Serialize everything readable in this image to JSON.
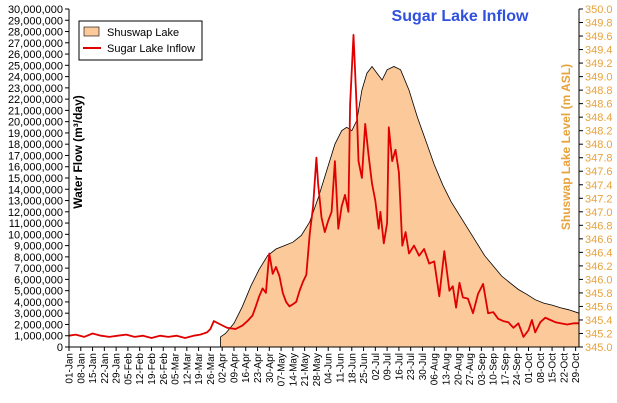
{
  "chart_data": {
    "type": "area+line (dual axis)",
    "title": "Sugar Lake Inflow",
    "ylabel_left": "Water Flow (m³/day)",
    "ylabel_right": "Shuswap Lake Level (m ASL)",
    "ylim_left": [
      0,
      30000000
    ],
    "ylim_right": [
      345.0,
      350.0
    ],
    "grid": false,
    "legend_position": "top-left inside",
    "legend": [
      "Shuswap Lake",
      "Sugar Lake Inflow"
    ],
    "y_ticks_left": [
      "0",
      "1,000,000",
      "2,000,000",
      "3,000,000",
      "4,000,000",
      "5,000,000",
      "6,000,000",
      "7,000,000",
      "8,000,000",
      "9,000,000",
      "10,000,000",
      "11,000,000",
      "12,000,000",
      "13,000,000",
      "14,000,000",
      "15,000,000",
      "16,000,000",
      "17,000,000",
      "18,000,000",
      "19,000,000",
      "20,000,000",
      "21,000,000",
      "22,000,000",
      "23,000,000",
      "24,000,000",
      "25,000,000",
      "26,000,000",
      "27,000,000",
      "28,000,000",
      "29,000,000",
      "30,000,000"
    ],
    "y_ticks_right": [
      "345.0",
      "345.2",
      "345.4",
      "345.6",
      "345.8",
      "346.0",
      "346.2",
      "346.4",
      "346.6",
      "346.8",
      "347.0",
      "347.2",
      "347.4",
      "347.6",
      "347.8",
      "348.0",
      "348.2",
      "348.4",
      "348.6",
      "348.8",
      "349.0",
      "349.2",
      "349.4",
      "349.6",
      "349.8",
      "350.0"
    ],
    "x_ticks": [
      "01-Jan",
      "08-Jan",
      "15-Jan",
      "22-Jan",
      "29-Jan",
      "05-Feb",
      "12-Feb",
      "19-Feb",
      "26-Feb",
      "05-Mar",
      "12-Mar",
      "19-Mar",
      "26-Mar",
      "02-Apr",
      "09-Apr",
      "16-Apr",
      "23-Apr",
      "30-Apr",
      "07-May",
      "14-May",
      "21-May",
      "28-May",
      "04-Jun",
      "11-Jun",
      "18-Jun",
      "25-Jun",
      "02-Jul",
      "09-Jul",
      "16-Jul",
      "23-Jul",
      "30-Jul",
      "06-Aug",
      "13-Aug",
      "20-Aug",
      "27-Aug",
      "03-Sep",
      "10-Sep",
      "17-Sep",
      "24-Sep",
      "01-Oct",
      "08-Oct",
      "15-Oct",
      "22-Oct",
      "29-Oct"
    ],
    "series": [
      {
        "name": "Shuswap Lake",
        "axis": "right",
        "kind": "area",
        "color": "#fcc99a",
        "x": [
          "2002-04-01",
          "2002-04-04",
          "2002-04-09",
          "2002-04-14",
          "2002-04-19",
          "2002-04-24",
          "2002-04-29",
          "2002-05-04",
          "2002-05-09",
          "2002-05-14",
          "2002-05-19",
          "2002-05-24",
          "2002-05-29",
          "2002-06-03",
          "2002-06-08",
          "2002-06-12",
          "2002-06-15",
          "2002-06-18",
          "2002-06-21",
          "2002-06-24",
          "2002-06-27",
          "2002-06-30",
          "2002-07-03",
          "2002-07-06",
          "2002-07-09",
          "2002-07-13",
          "2002-07-17",
          "2002-07-22",
          "2002-07-27",
          "2002-08-01",
          "2002-08-06",
          "2002-08-11",
          "2002-08-16",
          "2002-08-21",
          "2002-08-26",
          "2002-08-31",
          "2002-09-05",
          "2002-09-10",
          "2002-09-15",
          "2002-09-20",
          "2002-09-25",
          "2002-09-30",
          "2002-10-05",
          "2002-10-10",
          "2002-10-15",
          "2002-10-20",
          "2002-10-25",
          "2002-10-31"
        ],
        "values": [
          345.15,
          345.2,
          345.35,
          345.6,
          345.9,
          346.15,
          346.35,
          346.45,
          346.5,
          346.55,
          346.65,
          346.85,
          347.2,
          347.6,
          348.0,
          348.2,
          348.25,
          348.2,
          348.35,
          348.8,
          349.05,
          349.15,
          349.05,
          348.95,
          349.1,
          349.15,
          349.1,
          348.8,
          348.4,
          348.05,
          347.7,
          347.4,
          347.15,
          346.95,
          346.75,
          346.55,
          346.35,
          346.2,
          346.05,
          345.95,
          345.85,
          345.78,
          345.7,
          345.65,
          345.62,
          345.58,
          345.55,
          345.5
        ]
      },
      {
        "name": "Sugar Lake Inflow",
        "axis": "left",
        "kind": "line",
        "color": "#e00000",
        "x": [
          "2002-01-01",
          "2002-01-05",
          "2002-01-10",
          "2002-01-15",
          "2002-01-20",
          "2002-01-25",
          "2002-01-30",
          "2002-02-04",
          "2002-02-09",
          "2002-02-14",
          "2002-02-19",
          "2002-02-24",
          "2002-03-01",
          "2002-03-06",
          "2002-03-11",
          "2002-03-16",
          "2002-03-20",
          "2002-03-24",
          "2002-03-26",
          "2002-03-28",
          "2002-04-01",
          "2002-04-05",
          "2002-04-10",
          "2002-04-14",
          "2002-04-17",
          "2002-04-20",
          "2002-04-22",
          "2002-04-24",
          "2002-04-26",
          "2002-04-28",
          "2002-04-30",
          "2002-05-02",
          "2002-05-04",
          "2002-05-06",
          "2002-05-08",
          "2002-05-10",
          "2002-05-12",
          "2002-05-14",
          "2002-05-16",
          "2002-05-18",
          "2002-05-20",
          "2002-05-22",
          "2002-05-24",
          "2002-05-26",
          "2002-05-28",
          "2002-05-29",
          "2002-05-31",
          "2002-06-02",
          "2002-06-04",
          "2002-06-06",
          "2002-06-08",
          "2002-06-10",
          "2002-06-12",
          "2002-06-14",
          "2002-06-16",
          "2002-06-17",
          "2002-06-19",
          "2002-06-21",
          "2002-06-22",
          "2002-06-24",
          "2002-06-26",
          "2002-06-28",
          "2002-06-30",
          "2002-07-02",
          "2002-07-04",
          "2002-07-05",
          "2002-07-07",
          "2002-07-09",
          "2002-07-10",
          "2002-07-12",
          "2002-07-14",
          "2002-07-16",
          "2002-07-18",
          "2002-07-20",
          "2002-07-22",
          "2002-07-25",
          "2002-07-28",
          "2002-07-31",
          "2002-08-03",
          "2002-08-06",
          "2002-08-09",
          "2002-08-12",
          "2002-08-15",
          "2002-08-17",
          "2002-08-19",
          "2002-08-21",
          "2002-08-23",
          "2002-08-26",
          "2002-08-29",
          "2002-09-01",
          "2002-09-04",
          "2002-09-07",
          "2002-09-10",
          "2002-09-13",
          "2002-09-16",
          "2002-09-19",
          "2002-09-22",
          "2002-09-25",
          "2002-09-28",
          "2002-10-01",
          "2002-10-03",
          "2002-10-05",
          "2002-10-08",
          "2002-10-11",
          "2002-10-14",
          "2002-10-17",
          "2002-10-20",
          "2002-10-24",
          "2002-10-28",
          "2002-10-31"
        ],
        "values": [
          1000000,
          1100000,
          900000,
          1200000,
          1000000,
          900000,
          1000000,
          1100000,
          900000,
          1000000,
          800000,
          1000000,
          900000,
          1000000,
          800000,
          1000000,
          1100000,
          1300000,
          1600000,
          2300000,
          2000000,
          1700000,
          1600000,
          1900000,
          2300000,
          2800000,
          3600000,
          4500000,
          5200000,
          4800000,
          8300000,
          6500000,
          7100000,
          6300000,
          4800000,
          4000000,
          3600000,
          3800000,
          4000000,
          5000000,
          5800000,
          6400000,
          10000000,
          12500000,
          16800000,
          14500000,
          11500000,
          10200000,
          11200000,
          12000000,
          16500000,
          10500000,
          12500000,
          13500000,
          12000000,
          21500000,
          27700000,
          21000000,
          16500000,
          15000000,
          19800000,
          17000000,
          14500000,
          13000000,
          10500000,
          12000000,
          9200000,
          11000000,
          19500000,
          16500000,
          17500000,
          15500000,
          9000000,
          10200000,
          8300000,
          9000000,
          8100000,
          8700000,
          7400000,
          7600000,
          4500000,
          8500000,
          5000000,
          5400000,
          3500000,
          5700000,
          4400000,
          4300000,
          3000000,
          4700000,
          5600000,
          3000000,
          3100000,
          2500000,
          2300000,
          2200000,
          1700000,
          2100000,
          900000,
          1500000,
          2400000,
          1300000,
          2200000,
          2600000,
          2400000,
          2200000,
          2100000,
          2000000,
          2100000,
          2100000
        ]
      }
    ]
  }
}
